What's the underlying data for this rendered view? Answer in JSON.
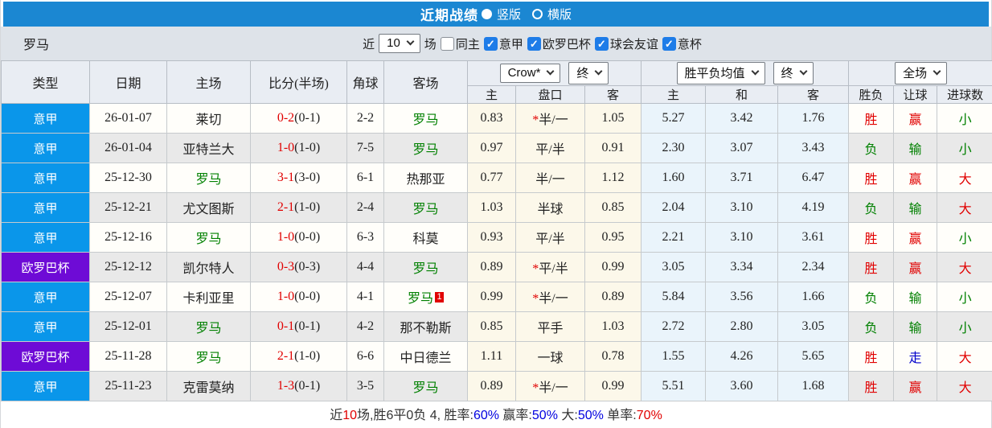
{
  "colors": {
    "titlebar_bg": "#1b87d2",
    "league_serie_a": "#0a96ea",
    "league_europa": "#6e0bd6",
    "win_red": "#e10000",
    "lose_green": "#008000",
    "push_blue": "#0000cc",
    "summary_blue": "#0000e0"
  },
  "titlebar": {
    "title": "近期战绩",
    "vertical_label": "竖版",
    "horizontal_label": "横版",
    "selected_option": "竖版"
  },
  "filterbar": {
    "team": "罗马",
    "near_label": "近",
    "count_value": "10",
    "games_label": "场",
    "checkboxes": [
      {
        "label": "同主",
        "checked": false
      },
      {
        "label": "意甲",
        "checked": true
      },
      {
        "label": "欧罗巴杯",
        "checked": true
      },
      {
        "label": "球会友谊",
        "checked": true
      },
      {
        "label": "意杯",
        "checked": true
      }
    ]
  },
  "table": {
    "headers": [
      "类型",
      "日期",
      "主场",
      "比分(半场)",
      "角球",
      "客场"
    ],
    "group1": {
      "select1": "Crow*",
      "select2": "终",
      "subs": [
        "主",
        "盘口",
        "客"
      ]
    },
    "group2": {
      "select1": "胜平负均值",
      "select2": "终",
      "subs": [
        "主",
        "和",
        "客"
      ]
    },
    "group3": {
      "select1": "全场",
      "subs": [
        "胜负",
        "让球",
        "进球数"
      ]
    },
    "rows": [
      {
        "league": "意甲",
        "league_bg": "#0a96ea",
        "date": "26-01-07",
        "home": "莱切",
        "home_color": "#222222",
        "score": "0-2",
        "half": "(0-1)",
        "corners": "2-2",
        "away": "罗马",
        "away_color": "#008000",
        "badge": "",
        "crow_home": "0.83",
        "hdc_star": "*",
        "hdc": "半/一",
        "crow_away": "1.05",
        "avg_home": "5.27",
        "avg_draw": "3.42",
        "avg_away": "1.76",
        "result": "胜",
        "result_color": "#e10000",
        "cover": "赢",
        "cover_color": "#e10000",
        "goals": "小",
        "goals_color": "#008000"
      },
      {
        "league": "意甲",
        "league_bg": "#0a96ea",
        "date": "26-01-04",
        "home": "亚特兰大",
        "home_color": "#222222",
        "score": "1-0",
        "half": "(1-0)",
        "corners": "7-5",
        "away": "罗马",
        "away_color": "#008000",
        "badge": "",
        "crow_home": "0.97",
        "hdc_star": "",
        "hdc": "平/半",
        "crow_away": "0.91",
        "avg_home": "2.30",
        "avg_draw": "3.07",
        "avg_away": "3.43",
        "result": "负",
        "result_color": "#008000",
        "cover": "输",
        "cover_color": "#008000",
        "goals": "小",
        "goals_color": "#008000"
      },
      {
        "league": "意甲",
        "league_bg": "#0a96ea",
        "date": "25-12-30",
        "home": "罗马",
        "home_color": "#008000",
        "score": "3-1",
        "half": "(3-0)",
        "corners": "6-1",
        "away": "热那亚",
        "away_color": "#222222",
        "badge": "",
        "crow_home": "0.77",
        "hdc_star": "",
        "hdc": "半/一",
        "crow_away": "1.12",
        "avg_home": "1.60",
        "avg_draw": "3.71",
        "avg_away": "6.47",
        "result": "胜",
        "result_color": "#e10000",
        "cover": "赢",
        "cover_color": "#e10000",
        "goals": "大",
        "goals_color": "#e10000"
      },
      {
        "league": "意甲",
        "league_bg": "#0a96ea",
        "date": "25-12-21",
        "home": "尤文图斯",
        "home_color": "#222222",
        "score": "2-1",
        "half": "(1-0)",
        "corners": "2-4",
        "away": "罗马",
        "away_color": "#008000",
        "badge": "",
        "crow_home": "1.03",
        "hdc_star": "",
        "hdc": "半球",
        "crow_away": "0.85",
        "avg_home": "2.04",
        "avg_draw": "3.10",
        "avg_away": "4.19",
        "result": "负",
        "result_color": "#008000",
        "cover": "输",
        "cover_color": "#008000",
        "goals": "大",
        "goals_color": "#e10000"
      },
      {
        "league": "意甲",
        "league_bg": "#0a96ea",
        "date": "25-12-16",
        "home": "罗马",
        "home_color": "#008000",
        "score": "1-0",
        "half": "(0-0)",
        "corners": "6-3",
        "away": "科莫",
        "away_color": "#222222",
        "badge": "",
        "crow_home": "0.93",
        "hdc_star": "",
        "hdc": "平/半",
        "crow_away": "0.95",
        "avg_home": "2.21",
        "avg_draw": "3.10",
        "avg_away": "3.61",
        "result": "胜",
        "result_color": "#e10000",
        "cover": "赢",
        "cover_color": "#e10000",
        "goals": "小",
        "goals_color": "#008000"
      },
      {
        "league": "欧罗巴杯",
        "league_bg": "#6e0bd6",
        "date": "25-12-12",
        "home": "凯尔特人",
        "home_color": "#222222",
        "score": "0-3",
        "half": "(0-3)",
        "corners": "4-4",
        "away": "罗马",
        "away_color": "#008000",
        "badge": "",
        "crow_home": "0.89",
        "hdc_star": "*",
        "hdc": "平/半",
        "crow_away": "0.99",
        "avg_home": "3.05",
        "avg_draw": "3.34",
        "avg_away": "2.34",
        "result": "胜",
        "result_color": "#e10000",
        "cover": "赢",
        "cover_color": "#e10000",
        "goals": "大",
        "goals_color": "#e10000"
      },
      {
        "league": "意甲",
        "league_bg": "#0a96ea",
        "date": "25-12-07",
        "home": "卡利亚里",
        "home_color": "#222222",
        "score": "1-0",
        "half": "(0-0)",
        "corners": "4-1",
        "away": "罗马",
        "away_color": "#008000",
        "badge": "1",
        "crow_home": "0.99",
        "hdc_star": "*",
        "hdc": "半/一",
        "crow_away": "0.89",
        "avg_home": "5.84",
        "avg_draw": "3.56",
        "avg_away": "1.66",
        "result": "负",
        "result_color": "#008000",
        "cover": "输",
        "cover_color": "#008000",
        "goals": "小",
        "goals_color": "#008000"
      },
      {
        "league": "意甲",
        "league_bg": "#0a96ea",
        "date": "25-12-01",
        "home": "罗马",
        "home_color": "#008000",
        "score": "0-1",
        "half": "(0-1)",
        "corners": "4-2",
        "away": "那不勒斯",
        "away_color": "#222222",
        "badge": "",
        "crow_home": "0.85",
        "hdc_star": "",
        "hdc": "平手",
        "crow_away": "1.03",
        "avg_home": "2.72",
        "avg_draw": "2.80",
        "avg_away": "3.05",
        "result": "负",
        "result_color": "#008000",
        "cover": "输",
        "cover_color": "#008000",
        "goals": "小",
        "goals_color": "#008000"
      },
      {
        "league": "欧罗巴杯",
        "league_bg": "#6e0bd6",
        "date": "25-11-28",
        "home": "罗马",
        "home_color": "#008000",
        "score": "2-1",
        "half": "(1-0)",
        "corners": "6-6",
        "away": "中日德兰",
        "away_color": "#222222",
        "badge": "",
        "crow_home": "1.11",
        "hdc_star": "",
        "hdc": "一球",
        "crow_away": "0.78",
        "avg_home": "1.55",
        "avg_draw": "4.26",
        "avg_away": "5.65",
        "result": "胜",
        "result_color": "#e10000",
        "cover": "走",
        "cover_color": "#0000cc",
        "goals": "大",
        "goals_color": "#e10000"
      },
      {
        "league": "意甲",
        "league_bg": "#0a96ea",
        "date": "25-11-23",
        "home": "克雷莫纳",
        "home_color": "#222222",
        "score": "1-3",
        "half": "(0-1)",
        "corners": "3-5",
        "away": "罗马",
        "away_color": "#008000",
        "badge": "",
        "crow_home": "0.89",
        "hdc_star": "*",
        "hdc": "半/一",
        "crow_away": "0.99",
        "avg_home": "5.51",
        "avg_draw": "3.60",
        "avg_away": "1.68",
        "result": "胜",
        "result_color": "#e10000",
        "cover": "赢",
        "cover_color": "#e10000",
        "goals": "大",
        "goals_color": "#e10000"
      }
    ]
  },
  "summary": {
    "segments": [
      {
        "text": "近",
        "color": "#333333"
      },
      {
        "text": "10",
        "color": "#e10000"
      },
      {
        "text": "场,胜6平0负 4, 胜率:",
        "color": "#333333"
      },
      {
        "text": "60%",
        "color": "#0000e0"
      },
      {
        "text": " 赢率:",
        "color": "#333333"
      },
      {
        "text": "50%",
        "color": "#0000e0"
      },
      {
        "text": " 大:",
        "color": "#333333"
      },
      {
        "text": "50%",
        "color": "#0000e0"
      },
      {
        "text": " 单率:",
        "color": "#333333"
      },
      {
        "text": "70%",
        "color": "#e10000"
      }
    ]
  }
}
